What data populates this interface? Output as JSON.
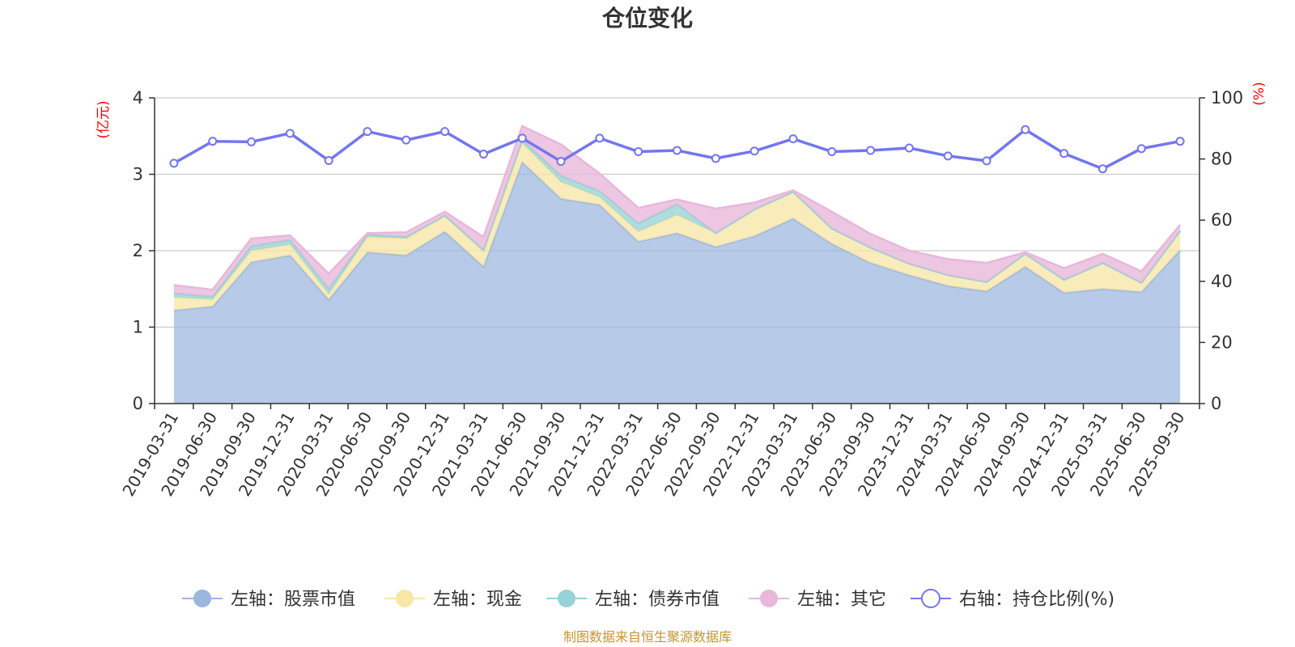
{
  "chart_data": {
    "type": "area",
    "title": "仓位变化",
    "left_axis_unit": "(亿元)",
    "right_axis_unit": "(%)",
    "left_ylim": [
      0,
      4
    ],
    "left_ticks": [
      "0",
      "1",
      "2",
      "3",
      "4"
    ],
    "right_ylim": [
      0,
      100
    ],
    "right_ticks": [
      "0",
      "20",
      "40",
      "60",
      "80",
      "100"
    ],
    "categories": [
      "2019-03-31",
      "2019-06-30",
      "2019-09-30",
      "2019-12-31",
      "2020-03-31",
      "2020-06-30",
      "2020-09-30",
      "2020-12-31",
      "2021-03-31",
      "2021-06-30",
      "2021-09-30",
      "2021-12-31",
      "2022-03-31",
      "2022-06-30",
      "2022-09-30",
      "2022-12-31",
      "2023-03-31",
      "2023-06-30",
      "2023-09-30",
      "2023-12-31",
      "2024-03-31",
      "2024-06-30",
      "2024-09-30",
      "2024-12-31",
      "2025-03-31",
      "2025-06-30",
      "2025-09-30"
    ],
    "series": [
      {
        "name": "左轴：股票市值",
        "axis": "left",
        "type": "stacked-area",
        "color": "#9bb6df",
        "values": [
          1.22,
          1.27,
          1.85,
          1.94,
          1.36,
          1.98,
          1.94,
          2.25,
          1.79,
          3.16,
          2.68,
          2.6,
          2.12,
          2.23,
          2.05,
          2.19,
          2.42,
          2.09,
          1.84,
          1.68,
          1.54,
          1.47,
          1.79,
          1.45,
          1.5,
          1.46,
          2.01
        ]
      },
      {
        "name": "左轴：现金",
        "axis": "left",
        "type": "stacked-area",
        "color": "#f7e7a6",
        "values": [
          0.17,
          0.09,
          0.15,
          0.14,
          0.07,
          0.2,
          0.22,
          0.2,
          0.2,
          0.25,
          0.22,
          0.1,
          0.13,
          0.24,
          0.18,
          0.35,
          0.35,
          0.2,
          0.2,
          0.15,
          0.14,
          0.12,
          0.17,
          0.17,
          0.34,
          0.12,
          0.25
        ]
      },
      {
        "name": "左轴：债券市值",
        "axis": "left",
        "type": "stacked-area",
        "color": "#96d3d6",
        "values": [
          0.05,
          0.04,
          0.06,
          0.06,
          0.07,
          0.03,
          0.02,
          0.01,
          0.02,
          0.04,
          0.08,
          0.08,
          0.11,
          0.14,
          0.0,
          0.0,
          0.0,
          0.0,
          0.0,
          0.0,
          0.0,
          0.0,
          0.0,
          0.0,
          0.0,
          0.0,
          0.0
        ]
      },
      {
        "name": "左轴：其它",
        "axis": "left",
        "type": "stacked-area",
        "color": "#e8b7da",
        "values": [
          0.11,
          0.09,
          0.1,
          0.06,
          0.2,
          0.02,
          0.06,
          0.05,
          0.17,
          0.18,
          0.41,
          0.23,
          0.2,
          0.06,
          0.32,
          0.09,
          0.02,
          0.22,
          0.18,
          0.17,
          0.21,
          0.25,
          0.02,
          0.15,
          0.12,
          0.15,
          0.08
        ]
      },
      {
        "name": "右轴：持仓比例(%)",
        "axis": "right",
        "type": "line",
        "color": "#7376f0",
        "values": [
          78.6,
          85.8,
          85.6,
          88.4,
          79.5,
          89.0,
          86.2,
          89.0,
          81.6,
          86.8,
          79.2,
          86.8,
          82.4,
          82.8,
          80.2,
          82.6,
          86.6,
          82.4,
          82.8,
          83.6,
          81.0,
          79.4,
          89.6,
          81.8,
          76.8,
          83.4,
          85.8
        ]
      }
    ],
    "grid": true,
    "legend_position": "bottom-center"
  },
  "legend": [
    {
      "label": "左轴：股票市值",
      "color": "#9bb6df",
      "kind": "area"
    },
    {
      "label": "左轴：现金",
      "color": "#f7e7a6",
      "kind": "area"
    },
    {
      "label": "左轴：债券市值",
      "color": "#96d3d6",
      "kind": "area"
    },
    {
      "label": "左轴：其它",
      "color": "#e8b7da",
      "kind": "area"
    },
    {
      "label": "右轴：持仓比例(%)",
      "color": "#7376f0",
      "kind": "line"
    }
  ],
  "source": "制图数据来自恒生聚源数据库"
}
